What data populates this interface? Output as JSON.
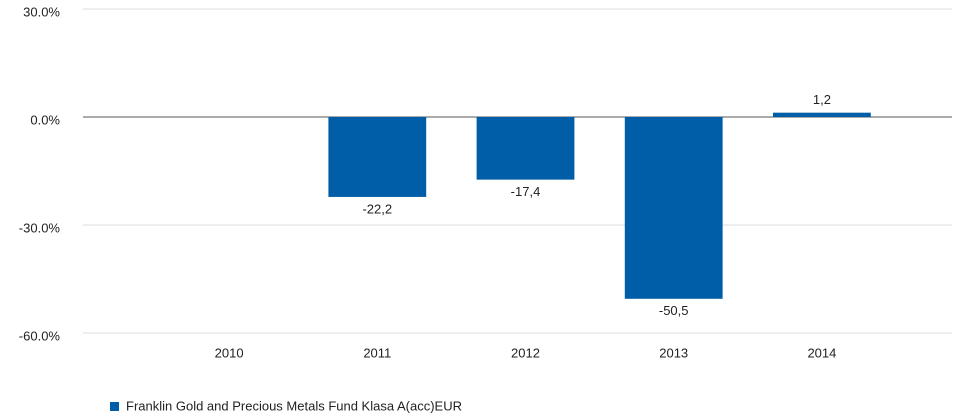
{
  "chart_data": {
    "type": "bar",
    "categories": [
      "2010",
      "2011",
      "2012",
      "2013",
      "2014"
    ],
    "series": [
      {
        "name": "Franklin Gold and Precious Metals Fund Klasa A(acc)EUR",
        "color": "#005ea8",
        "values": [
          null,
          -22.2,
          -17.4,
          -50.5,
          1.2
        ],
        "value_labels": [
          null,
          "-22,2",
          "-17,4",
          "-50,5",
          "1,2"
        ]
      }
    ],
    "ylim": [
      -60,
      30
    ],
    "yticks": [
      {
        "value": 30,
        "label": "30.0%"
      },
      {
        "value": 0,
        "label": "0.0%"
      },
      {
        "value": -30,
        "label": "-30.0%"
      },
      {
        "value": -60,
        "label": "-60.0%"
      }
    ],
    "grid": true,
    "legend": "bottom-left"
  }
}
